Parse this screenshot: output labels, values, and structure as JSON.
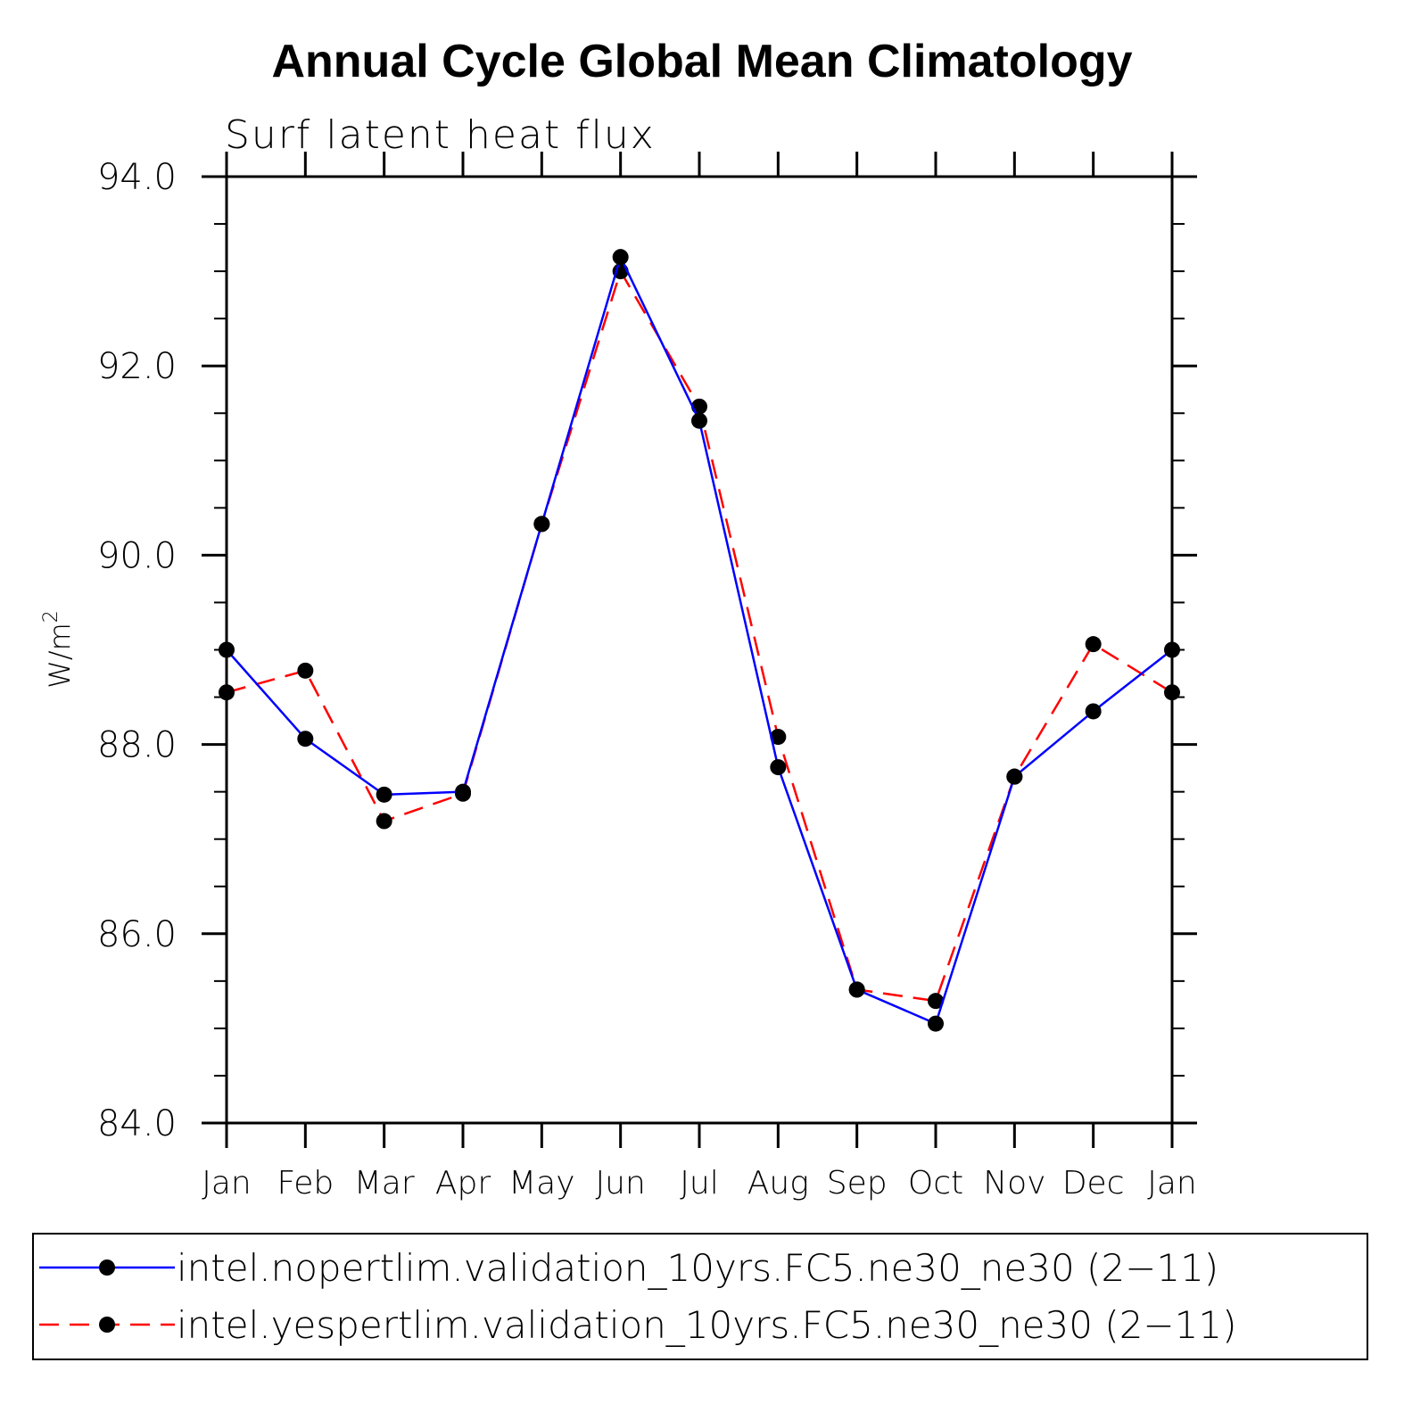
{
  "chart_data": {
    "type": "line",
    "title": "Annual Cycle Global Mean Climatology",
    "subtitle": "Surf latent heat flux",
    "ylabel": "W/m",
    "ylabel_superscript": "2",
    "xlabel": "",
    "categories": [
      "Jan",
      "Feb",
      "Mar",
      "Apr",
      "May",
      "Jun",
      "Jul",
      "Aug",
      "Sep",
      "Oct",
      "Nov",
      "Dec",
      "Jan"
    ],
    "ylim": [
      84.0,
      94.0
    ],
    "yticks": [
      "84.0",
      "86.0",
      "88.0",
      "90.0",
      "92.0",
      "94.0"
    ],
    "grid": false,
    "legend_position": "bottom",
    "series": [
      {
        "name": "intel.nopertlim.validation_10yrs.FC5.ne30_ne30 (2−11)",
        "color": "#0000ff",
        "dash": "solid",
        "marker": "filled-circle",
        "values": [
          89.0,
          88.06,
          87.47,
          87.5,
          90.33,
          93.15,
          91.42,
          87.76,
          85.41,
          85.05,
          87.66,
          88.35,
          89.0
        ]
      },
      {
        "name": "intel.yespertlim.validation_10yrs.FC5.ne30_ne30 (2−11)",
        "color": "#ff0000",
        "dash": "dashed",
        "marker": "filled-circle",
        "values": [
          88.55,
          88.78,
          87.19,
          87.48,
          90.33,
          93.0,
          91.57,
          88.08,
          85.41,
          85.29,
          87.66,
          89.06,
          88.55
        ]
      }
    ]
  }
}
